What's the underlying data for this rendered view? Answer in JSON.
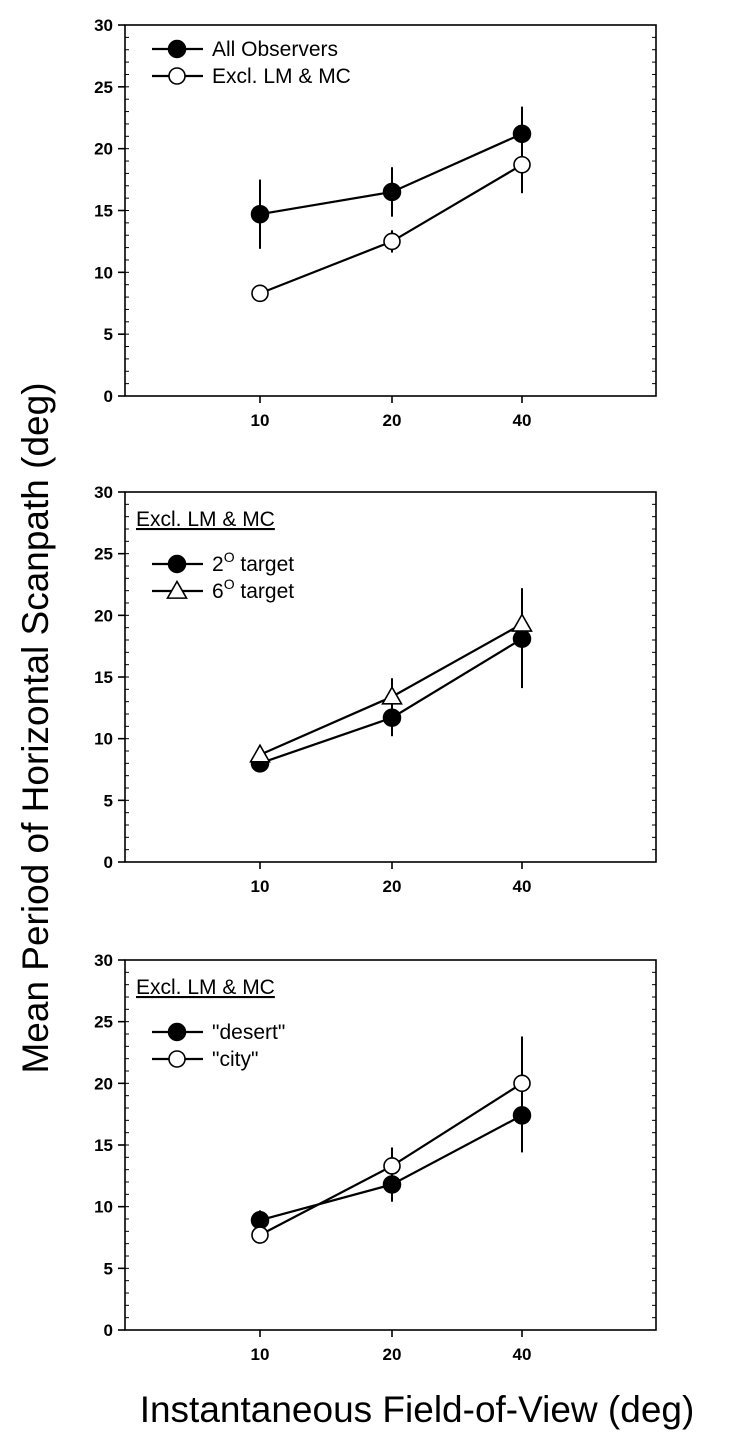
{
  "chart_data": {
    "type": "line",
    "shared_ylabel": "Mean Period of Horizontal Scanpath (deg)",
    "shared_xlabel": "Instantaneous Field-of-View (deg)",
    "panels": [
      {
        "title": "",
        "note": "",
        "categories": [
          "10",
          "20",
          "40"
        ],
        "ylim": [
          0,
          30
        ],
        "yticks": [
          0,
          5,
          10,
          15,
          20,
          25,
          30
        ],
        "legend_position": "top-left",
        "series": [
          {
            "name": "All Observers",
            "marker": "filled-circle",
            "values": [
              14.7,
              16.5,
              21.2
            ],
            "errors": [
              2.8,
              2.0,
              2.2
            ]
          },
          {
            "name": "Excl. LM & MC",
            "marker": "open-circle",
            "values": [
              8.3,
              12.5,
              18.7
            ],
            "errors": [
              0.5,
              0.9,
              2.3
            ]
          }
        ]
      },
      {
        "title": "",
        "note": "Excl. LM & MC",
        "categories": [
          "10",
          "20",
          "40"
        ],
        "ylim": [
          0,
          30
        ],
        "yticks": [
          0,
          5,
          10,
          15,
          20,
          25,
          30
        ],
        "legend_position": "top-left",
        "series": [
          {
            "name": "2",
            "name_sup": "O",
            "name_suffix": " target",
            "marker": "filled-circle",
            "values": [
              8.0,
              11.7,
              18.1
            ],
            "errors": [
              0.4,
              1.5,
              4.0
            ]
          },
          {
            "name": "6",
            "name_sup": "O",
            "name_suffix": " target",
            "marker": "open-triangle",
            "values": [
              8.7,
              13.4,
              19.3
            ],
            "errors": [
              0.4,
              1.5,
              2.9
            ]
          }
        ]
      },
      {
        "title": "",
        "note": "Excl. LM & MC",
        "categories": [
          "10",
          "20",
          "40"
        ],
        "ylim": [
          0,
          30
        ],
        "yticks": [
          0,
          5,
          10,
          15,
          20,
          25,
          30
        ],
        "legend_position": "top-left",
        "series": [
          {
            "name": "\"desert\"",
            "marker": "filled-circle",
            "values": [
              8.9,
              11.8,
              17.4
            ],
            "errors": [
              0.8,
              1.4,
              3.0
            ]
          },
          {
            "name": "\"city\"",
            "marker": "open-circle",
            "values": [
              7.7,
              13.3,
              20.0
            ],
            "errors": [
              0.5,
              1.5,
              3.8
            ]
          }
        ]
      }
    ]
  }
}
